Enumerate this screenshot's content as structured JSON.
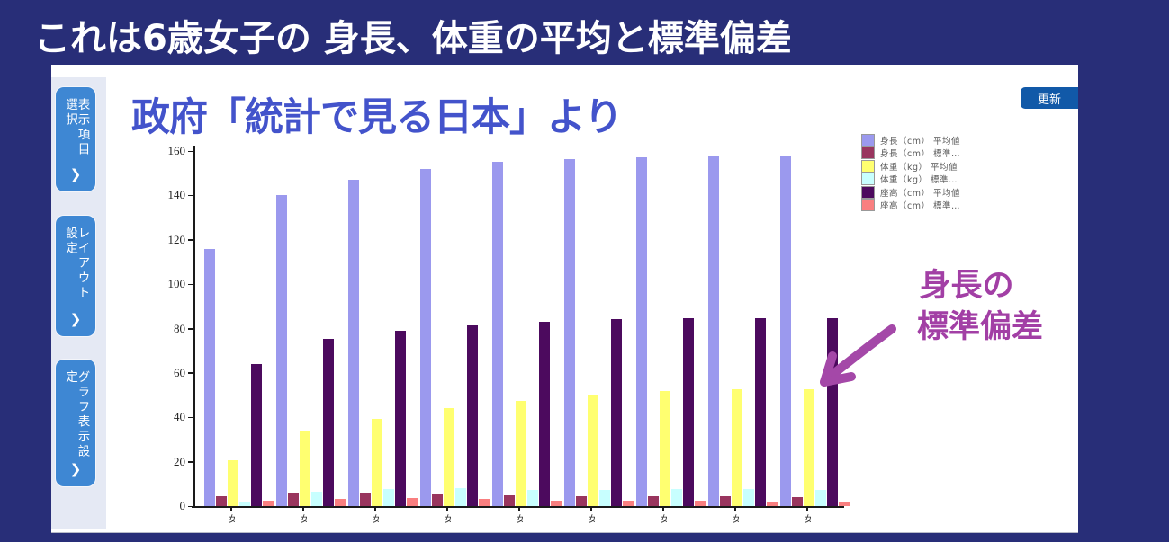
{
  "banner": {
    "title": "これは6歳女子の 身長、体重の平均と標準偏差"
  },
  "sidebar": {
    "tabs": [
      {
        "label": "表示項目選択",
        "chevron": "❯"
      },
      {
        "label": "レイアウト設定",
        "chevron": "❯"
      },
      {
        "label": "グラフ表示設定",
        "chevron": "❯"
      }
    ]
  },
  "toolbar": {
    "update_label": "更新"
  },
  "overlay": {
    "source_note": "政府「統計で見る日本」より",
    "annotation_line1": "身長の",
    "annotation_line2": "標準偏差"
  },
  "colors": {
    "page_navy": "#282e78",
    "tab_blue": "#3e87d3",
    "button_blue": "#1159a8",
    "note_blue": "#4353cb",
    "annotation_magenta": "#a23fa5"
  },
  "chart_data": {
    "type": "bar",
    "title": "",
    "xlabel": "",
    "ylabel": "",
    "ylim": [
      0,
      160
    ],
    "ytick_step": 20,
    "grid": false,
    "legend_position": "right",
    "categories": [
      "女",
      "女",
      "女",
      "女",
      "女",
      "女",
      "女",
      "女",
      "女"
    ],
    "series": [
      {
        "name": "身長（cm） 平均値",
        "color": "#9b99ee",
        "values": [
          115.8,
          140.0,
          147.0,
          152.0,
          155.0,
          156.5,
          157.2,
          157.6,
          157.7
        ]
      },
      {
        "name": "身長（cm） 標準…",
        "color": "#99355e",
        "values": [
          4.4,
          6.0,
          5.9,
          5.2,
          5.0,
          4.6,
          4.4,
          4.3,
          4.2
        ]
      },
      {
        "name": "体重（kg） 平均値",
        "color": "#ffff70",
        "values": [
          20.8,
          34.0,
          39.2,
          44.0,
          47.3,
          50.3,
          52.0,
          52.5,
          52.8
        ]
      },
      {
        "name": "体重（kg） 標準…",
        "color": "#c8ffff",
        "values": [
          2.1,
          6.6,
          7.6,
          7.9,
          7.4,
          7.4,
          7.8,
          7.8,
          7.4
        ]
      },
      {
        "name": "座高（cm） 平均値",
        "color": "#4c0a5e",
        "values": [
          64.2,
          75.4,
          78.8,
          81.5,
          83.2,
          84.2,
          84.6,
          84.8,
          84.6
        ]
      },
      {
        "name": "座高（cm） 標準…",
        "color": "#f97f80",
        "values": [
          2.4,
          3.2,
          3.6,
          3.3,
          2.5,
          2.3,
          2.3,
          1.8,
          2.0
        ]
      }
    ]
  }
}
